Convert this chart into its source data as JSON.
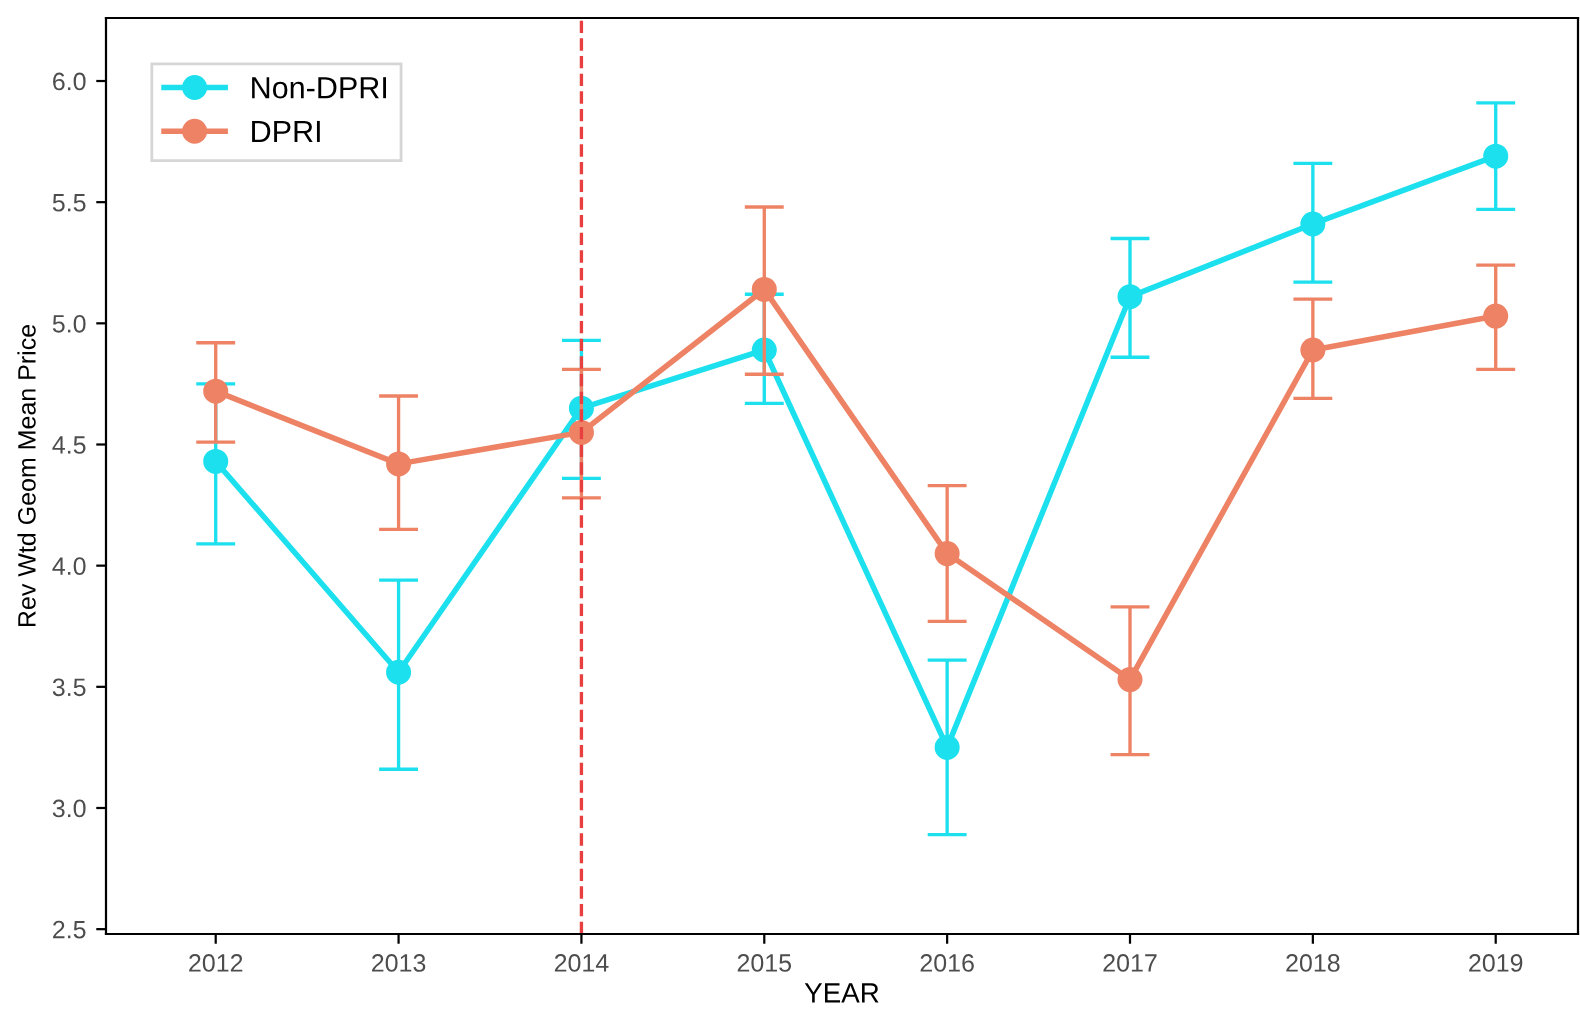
{
  "chart_data": {
    "type": "line",
    "xlabel": "YEAR",
    "ylabel": "Rev Wtd Geom Mean Price",
    "x": [
      2012,
      2013,
      2014,
      2015,
      2016,
      2017,
      2018,
      2019
    ],
    "xlim": [
      2011.4,
      2019.45
    ],
    "xticks": [
      2012,
      2013,
      2014,
      2015,
      2016,
      2017,
      2018,
      2019
    ],
    "ylim": [
      2.48,
      6.26
    ],
    "yticks": [
      {
        "value": 2.5,
        "label": "2.5"
      },
      {
        "value": 3.0,
        "label": "3.0"
      },
      {
        "value": 3.5,
        "label": "3.5"
      },
      {
        "value": 4.0,
        "label": "4.0"
      },
      {
        "value": 4.5,
        "label": "4.5"
      },
      {
        "value": 5.0,
        "label": "5.0"
      },
      {
        "value": 5.5,
        "label": "5.5"
      },
      {
        "value": 6.0,
        "label": "6.0"
      }
    ],
    "series": [
      {
        "name": "Non-DPRI",
        "color": "#1ce0ee",
        "values": [
          4.43,
          3.56,
          4.65,
          4.89,
          3.25,
          5.11,
          5.41,
          5.69
        ],
        "errors": [
          [
            4.09,
            4.75
          ],
          [
            3.16,
            3.94
          ],
          [
            4.36,
            4.93
          ],
          [
            4.67,
            5.12
          ],
          [
            2.89,
            3.61
          ],
          [
            4.86,
            5.35
          ],
          [
            5.17,
            5.66
          ],
          [
            5.47,
            5.91
          ]
        ]
      },
      {
        "name": "DPRI",
        "color": "#ee8264",
        "values": [
          4.72,
          4.42,
          4.55,
          5.14,
          4.05,
          3.53,
          4.89,
          5.03
        ],
        "errors": [
          [
            4.51,
            4.92
          ],
          [
            4.15,
            4.7
          ],
          [
            4.28,
            4.81
          ],
          [
            4.79,
            5.48
          ],
          [
            3.77,
            4.33
          ],
          [
            3.22,
            3.83
          ],
          [
            4.69,
            5.1
          ],
          [
            4.81,
            5.24
          ]
        ]
      }
    ],
    "ref_lines": [
      {
        "axis": "x",
        "value": 2014,
        "color": "#e8403f",
        "line_style": "dashed"
      }
    ],
    "marker": "circle",
    "line_style": "solid",
    "grid": false,
    "legend": "top left"
  }
}
